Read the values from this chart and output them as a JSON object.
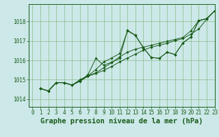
{
  "title": "Graphe pression niveau de la mer (hPa)",
  "bg_color": "#cce8e8",
  "grid_color": "#88bb88",
  "line_color": "#1a5c1a",
  "marker_color": "#1a5c1a",
  "xlim": [
    -0.5,
    23
  ],
  "ylim": [
    1013.6,
    1018.9
  ],
  "yticks": [
    1014,
    1015,
    1016,
    1017,
    1018
  ],
  "xticks": [
    0,
    1,
    2,
    3,
    4,
    5,
    6,
    7,
    8,
    9,
    10,
    11,
    12,
    13,
    14,
    15,
    16,
    17,
    18,
    19,
    20,
    21,
    22,
    23
  ],
  "series": [
    [
      0,
      1014.55,
      1014.42,
      1014.85,
      1014.85,
      1014.72,
      1014.95,
      1015.25,
      1016.1,
      1015.75,
      1015.9,
      1016.1,
      1017.55,
      1017.3,
      1016.65,
      1016.15,
      1016.1,
      1016.42,
      1016.3,
      1016.9,
      1017.2,
      1018.05,
      1018.15,
      1018.55
    ],
    [
      0,
      1014.55,
      1014.42,
      1014.85,
      1014.85,
      1014.72,
      1015.0,
      1015.2,
      1015.35,
      1015.62,
      1015.88,
      1016.18,
      1016.42,
      1016.58,
      1016.68,
      1016.78,
      1016.88,
      1016.98,
      1017.08,
      1017.18,
      1017.52,
      1018.05,
      1018.15,
      1018.55
    ],
    [
      0,
      1014.55,
      1014.42,
      1014.85,
      1014.85,
      1014.72,
      1014.92,
      1015.18,
      1015.32,
      1015.48,
      1015.68,
      1015.92,
      1016.12,
      1016.32,
      1016.52,
      1016.68,
      1016.78,
      1016.88,
      1017.02,
      1017.12,
      1017.35,
      1017.62,
      1018.12,
      1018.55
    ],
    [
      0,
      1014.55,
      1014.42,
      1014.85,
      1014.85,
      1014.72,
      1014.95,
      1015.2,
      1015.52,
      1015.92,
      1016.12,
      1016.35,
      1017.52,
      1017.28,
      1016.65,
      1016.15,
      1016.1,
      1016.42,
      1016.3,
      1016.9,
      1017.2,
      1018.05,
      1018.15,
      1018.55
    ]
  ],
  "font_color": "#1a5c1a",
  "title_fontsize": 7.5,
  "tick_fontsize": 5.5
}
